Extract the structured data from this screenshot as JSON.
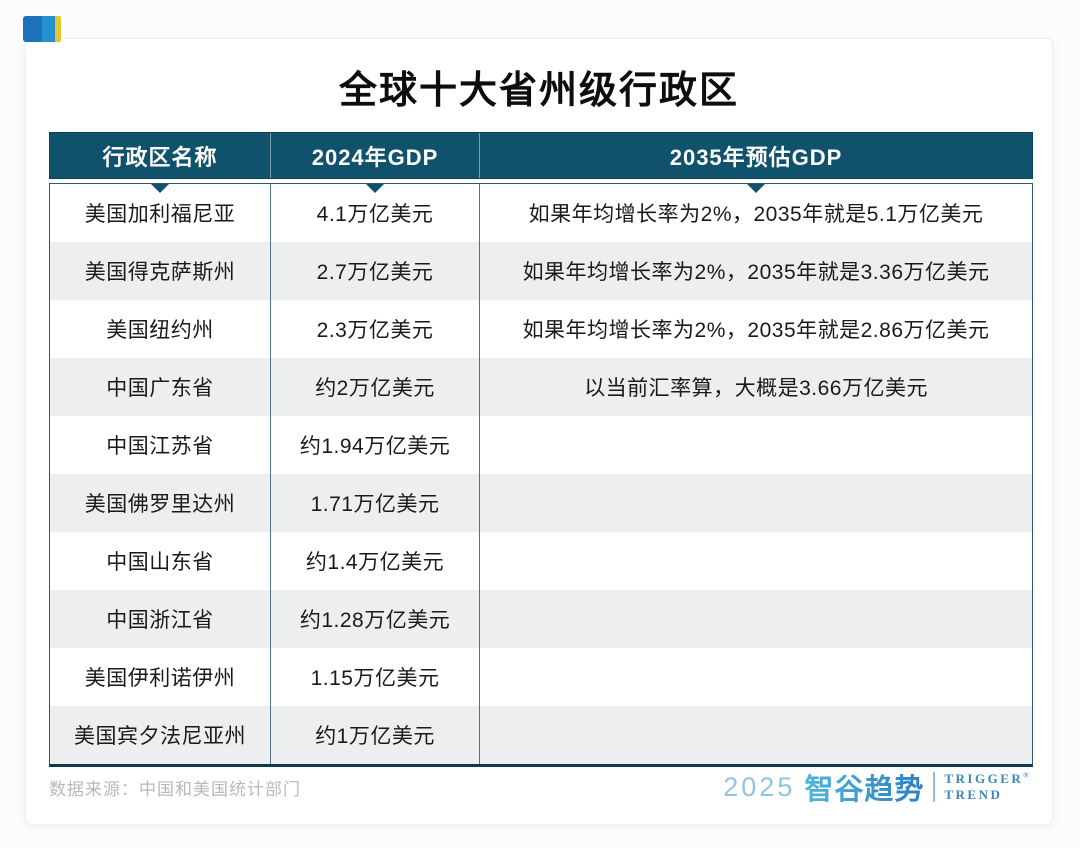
{
  "chart_data": {
    "type": "table",
    "title": "全球十大省州级行政区",
    "columns": [
      "行政区名称",
      "2024年GDP",
      "2035年预估GDP"
    ],
    "rows": [
      [
        "美国加利福尼亚",
        "4.1万亿美元",
        "如果年均增长率为2%，2035年就是5.1万亿美元"
      ],
      [
        "美国得克萨斯州",
        "2.7万亿美元",
        "如果年均增长率为2%，2035年就是3.36万亿美元"
      ],
      [
        "美国纽约州",
        "2.3万亿美元",
        "如果年均增长率为2%，2035年就是2.86万亿美元"
      ],
      [
        "中国广东省",
        "约2万亿美元",
        "以当前汇率算，大概是3.66万亿美元"
      ],
      [
        "中国江苏省",
        "约1.94万亿美元",
        ""
      ],
      [
        "美国佛罗里达州",
        "1.71万亿美元",
        ""
      ],
      [
        "中国山东省",
        "约1.4万亿美元",
        ""
      ],
      [
        "中国浙江省",
        "约1.28万亿美元",
        ""
      ],
      [
        "美国伊利诺伊州",
        "1.15万亿美元",
        ""
      ],
      [
        "美国宾夕法尼亚州",
        "约1万亿美元",
        ""
      ]
    ]
  },
  "footer": {
    "source": "数据来源：中国和美国统计部门"
  },
  "logo": {
    "year": "2025",
    "brand": "智谷趋势",
    "reg": "®",
    "en_line1": "TRIGGER",
    "en_line2": "TREND"
  },
  "colors": {
    "header_bg": "#10526B",
    "row_alt_bg": "#ECEEF0",
    "table_border": "#2F5C6D",
    "column_divider": "#4F7487",
    "cell_text": "#1A1A1A",
    "footer_text": "#B8B8B8",
    "brand_gradient_start": "#52B5D8",
    "brand_gradient_end": "#2B7FC3",
    "brand_en_text": "#3C86B8",
    "mark_blue_dark": "#1B72B8",
    "mark_blue_light": "#2492CF",
    "mark_yellow": "#E6C42F"
  }
}
